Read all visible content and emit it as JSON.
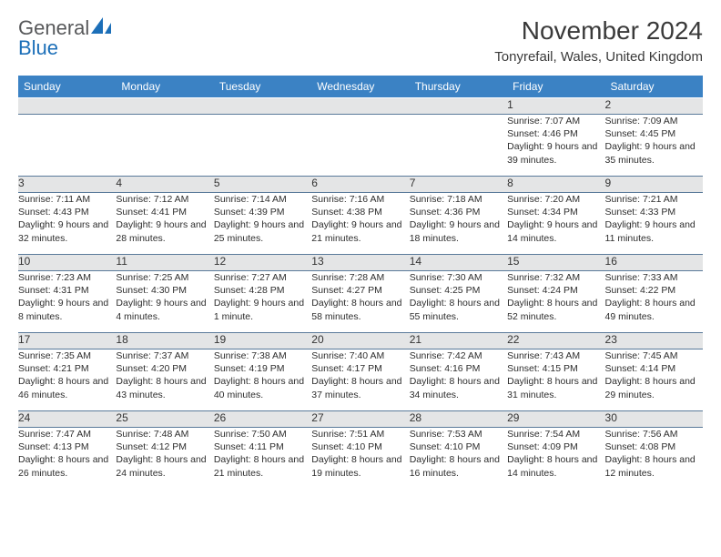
{
  "brand": {
    "general": "General",
    "blue": "Blue"
  },
  "title": "November 2024",
  "location": "Tonyrefail, Wales, United Kingdom",
  "colors": {
    "header_bg": "#3b82c4",
    "header_text": "#ffffff",
    "daynum_bg": "#e4e5e6",
    "border": "#5a7a9a",
    "brand_gray": "#57585a",
    "brand_blue": "#1c6fb8"
  },
  "weekdays": [
    "Sunday",
    "Monday",
    "Tuesday",
    "Wednesday",
    "Thursday",
    "Friday",
    "Saturday"
  ],
  "weeks": [
    [
      null,
      null,
      null,
      null,
      null,
      {
        "n": "1",
        "sr": "Sunrise: 7:07 AM",
        "ss": "Sunset: 4:46 PM",
        "dl": "Daylight: 9 hours and 39 minutes."
      },
      {
        "n": "2",
        "sr": "Sunrise: 7:09 AM",
        "ss": "Sunset: 4:45 PM",
        "dl": "Daylight: 9 hours and 35 minutes."
      }
    ],
    [
      {
        "n": "3",
        "sr": "Sunrise: 7:11 AM",
        "ss": "Sunset: 4:43 PM",
        "dl": "Daylight: 9 hours and 32 minutes."
      },
      {
        "n": "4",
        "sr": "Sunrise: 7:12 AM",
        "ss": "Sunset: 4:41 PM",
        "dl": "Daylight: 9 hours and 28 minutes."
      },
      {
        "n": "5",
        "sr": "Sunrise: 7:14 AM",
        "ss": "Sunset: 4:39 PM",
        "dl": "Daylight: 9 hours and 25 minutes."
      },
      {
        "n": "6",
        "sr": "Sunrise: 7:16 AM",
        "ss": "Sunset: 4:38 PM",
        "dl": "Daylight: 9 hours and 21 minutes."
      },
      {
        "n": "7",
        "sr": "Sunrise: 7:18 AM",
        "ss": "Sunset: 4:36 PM",
        "dl": "Daylight: 9 hours and 18 minutes."
      },
      {
        "n": "8",
        "sr": "Sunrise: 7:20 AM",
        "ss": "Sunset: 4:34 PM",
        "dl": "Daylight: 9 hours and 14 minutes."
      },
      {
        "n": "9",
        "sr": "Sunrise: 7:21 AM",
        "ss": "Sunset: 4:33 PM",
        "dl": "Daylight: 9 hours and 11 minutes."
      }
    ],
    [
      {
        "n": "10",
        "sr": "Sunrise: 7:23 AM",
        "ss": "Sunset: 4:31 PM",
        "dl": "Daylight: 9 hours and 8 minutes."
      },
      {
        "n": "11",
        "sr": "Sunrise: 7:25 AM",
        "ss": "Sunset: 4:30 PM",
        "dl": "Daylight: 9 hours and 4 minutes."
      },
      {
        "n": "12",
        "sr": "Sunrise: 7:27 AM",
        "ss": "Sunset: 4:28 PM",
        "dl": "Daylight: 9 hours and 1 minute."
      },
      {
        "n": "13",
        "sr": "Sunrise: 7:28 AM",
        "ss": "Sunset: 4:27 PM",
        "dl": "Daylight: 8 hours and 58 minutes."
      },
      {
        "n": "14",
        "sr": "Sunrise: 7:30 AM",
        "ss": "Sunset: 4:25 PM",
        "dl": "Daylight: 8 hours and 55 minutes."
      },
      {
        "n": "15",
        "sr": "Sunrise: 7:32 AM",
        "ss": "Sunset: 4:24 PM",
        "dl": "Daylight: 8 hours and 52 minutes."
      },
      {
        "n": "16",
        "sr": "Sunrise: 7:33 AM",
        "ss": "Sunset: 4:22 PM",
        "dl": "Daylight: 8 hours and 49 minutes."
      }
    ],
    [
      {
        "n": "17",
        "sr": "Sunrise: 7:35 AM",
        "ss": "Sunset: 4:21 PM",
        "dl": "Daylight: 8 hours and 46 minutes."
      },
      {
        "n": "18",
        "sr": "Sunrise: 7:37 AM",
        "ss": "Sunset: 4:20 PM",
        "dl": "Daylight: 8 hours and 43 minutes."
      },
      {
        "n": "19",
        "sr": "Sunrise: 7:38 AM",
        "ss": "Sunset: 4:19 PM",
        "dl": "Daylight: 8 hours and 40 minutes."
      },
      {
        "n": "20",
        "sr": "Sunrise: 7:40 AM",
        "ss": "Sunset: 4:17 PM",
        "dl": "Daylight: 8 hours and 37 minutes."
      },
      {
        "n": "21",
        "sr": "Sunrise: 7:42 AM",
        "ss": "Sunset: 4:16 PM",
        "dl": "Daylight: 8 hours and 34 minutes."
      },
      {
        "n": "22",
        "sr": "Sunrise: 7:43 AM",
        "ss": "Sunset: 4:15 PM",
        "dl": "Daylight: 8 hours and 31 minutes."
      },
      {
        "n": "23",
        "sr": "Sunrise: 7:45 AM",
        "ss": "Sunset: 4:14 PM",
        "dl": "Daylight: 8 hours and 29 minutes."
      }
    ],
    [
      {
        "n": "24",
        "sr": "Sunrise: 7:47 AM",
        "ss": "Sunset: 4:13 PM",
        "dl": "Daylight: 8 hours and 26 minutes."
      },
      {
        "n": "25",
        "sr": "Sunrise: 7:48 AM",
        "ss": "Sunset: 4:12 PM",
        "dl": "Daylight: 8 hours and 24 minutes."
      },
      {
        "n": "26",
        "sr": "Sunrise: 7:50 AM",
        "ss": "Sunset: 4:11 PM",
        "dl": "Daylight: 8 hours and 21 minutes."
      },
      {
        "n": "27",
        "sr": "Sunrise: 7:51 AM",
        "ss": "Sunset: 4:10 PM",
        "dl": "Daylight: 8 hours and 19 minutes."
      },
      {
        "n": "28",
        "sr": "Sunrise: 7:53 AM",
        "ss": "Sunset: 4:10 PM",
        "dl": "Daylight: 8 hours and 16 minutes."
      },
      {
        "n": "29",
        "sr": "Sunrise: 7:54 AM",
        "ss": "Sunset: 4:09 PM",
        "dl": "Daylight: 8 hours and 14 minutes."
      },
      {
        "n": "30",
        "sr": "Sunrise: 7:56 AM",
        "ss": "Sunset: 4:08 PM",
        "dl": "Daylight: 8 hours and 12 minutes."
      }
    ]
  ]
}
